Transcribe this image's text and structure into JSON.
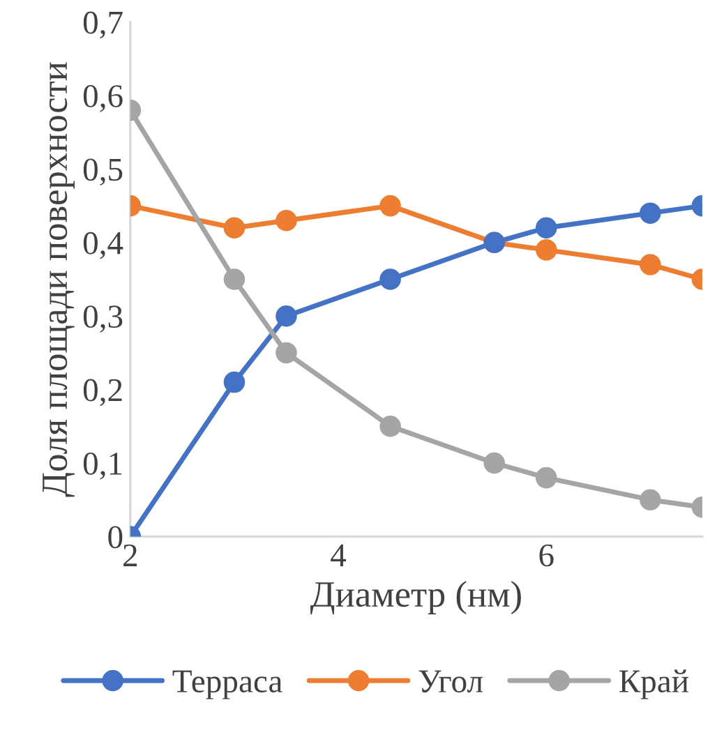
{
  "chart_data": {
    "type": "line",
    "xlabel": "Диаметр (нм)",
    "ylabel": "Доля площади поверхности",
    "x": [
      2,
      3,
      3.5,
      4.5,
      5.5,
      6,
      7,
      7.5
    ],
    "series": [
      {
        "name": "Терраса",
        "color": "#4472c4",
        "values": [
          0,
          0.21,
          0.3,
          0.35,
          0.4,
          0.42,
          0.44,
          0.45
        ]
      },
      {
        "name": "Угол",
        "color": "#ed7d31",
        "values": [
          0.45,
          0.42,
          0.43,
          0.45,
          0.4,
          0.39,
          0.37,
          0.35
        ]
      },
      {
        "name": "Край",
        "color": "#a5a5a5",
        "values": [
          0.58,
          0.35,
          0.25,
          0.15,
          0.1,
          0.08,
          0.05,
          0.04
        ]
      }
    ],
    "xlim": [
      2,
      7.5
    ],
    "xticks": [
      2,
      4,
      6
    ],
    "ylim": [
      0,
      0.7
    ],
    "yticks": [
      {
        "value": 0,
        "label": "0"
      },
      {
        "value": 0.1,
        "label": "0,1"
      },
      {
        "value": 0.2,
        "label": "0,2"
      },
      {
        "value": 0.3,
        "label": "0,3"
      },
      {
        "value": 0.4,
        "label": "0,4"
      },
      {
        "value": 0.5,
        "label": "0,5"
      },
      {
        "value": 0.6,
        "label": "0,6"
      },
      {
        "value": 0.7,
        "label": "0,7"
      }
    ],
    "grid": false,
    "legend": "bottom",
    "marker": "circle",
    "line_style": "solid"
  }
}
